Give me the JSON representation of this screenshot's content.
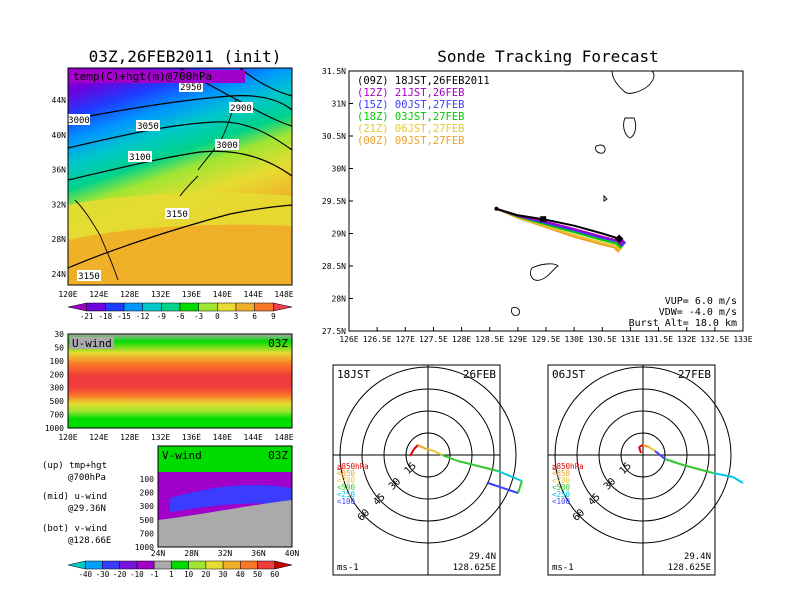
{
  "left_title": "03Z,26FEB2011 (init)",
  "right_title": "Sonde Tracking Forecast",
  "map_panel": {
    "label": "temp(C)+hgt(m)@700hPa",
    "contour_labels": [
      "2950",
      "2900",
      "3000",
      "3050",
      "3000",
      "3100",
      "3150",
      "3150"
    ],
    "lat_labels": [
      "44N",
      "40N",
      "36N",
      "32N",
      "28N",
      "24N"
    ],
    "lon_labels": [
      "120E",
      "124E",
      "128E",
      "132E",
      "136E",
      "140E",
      "144E",
      "148E"
    ]
  },
  "temp_colorbar": {
    "labels": [
      "-21",
      "-18",
      "-15",
      "-12",
      "-9",
      "-6",
      "-3",
      "0",
      "3",
      "6",
      "9"
    ],
    "colors": [
      "#a000c8",
      "#6e00dc",
      "#1e3cff",
      "#0096ff",
      "#00c8c8",
      "#00d28c",
      "#00dc00",
      "#a0e632",
      "#e6dc32",
      "#f0af28",
      "#fa7828",
      "#f03c50"
    ]
  },
  "uwind_panel": {
    "title": "U-wind",
    "time": "03Z",
    "p_labels": [
      "30",
      "50",
      "100",
      "200",
      "300",
      "500",
      "700",
      "1000"
    ],
    "lon_labels": [
      "120E",
      "124E",
      "128E",
      "132E",
      "136E",
      "140E",
      "144E",
      "148E"
    ]
  },
  "vwind_panel": {
    "title": "V-wind",
    "time": "03Z",
    "p_labels": [
      "100",
      "200",
      "300",
      "500",
      "700",
      "1000"
    ],
    "lat_labels": [
      "24N",
      "28N",
      "32N",
      "36N",
      "40N"
    ]
  },
  "legend_text": {
    "up1": "(up) tmp+hgt",
    "up2": "@700hPa",
    "mid1": "(mid) u-wind",
    "mid2": "@29.36N",
    "bot1": "(bot) v-wind",
    "bot2": "@128.66E"
  },
  "wind_colorbar": {
    "labels": [
      "-40",
      "-30",
      "-20",
      "-10",
      "-1",
      "1",
      "10",
      "20",
      "30",
      "40",
      "50",
      "60"
    ],
    "colors": [
      "#00c8c8",
      "#00a0ff",
      "#3c3cff",
      "#7814dc",
      "#a000c8",
      "#aaaaaa",
      "#00dc00",
      "#a0e632",
      "#e6dc32",
      "#f0af28",
      "#fa7828",
      "#f03c3c",
      "#c80000"
    ]
  },
  "track_panel": {
    "legend": [
      {
        "run": "(09Z)",
        "time": "18JST,26FEB2011",
        "color": "#000000"
      },
      {
        "run": "(12Z)",
        "time": "21JST,26FEB",
        "color": "#a000c8"
      },
      {
        "run": "(15Z)",
        "time": "00JST,27FEB",
        "color": "#3c3cff"
      },
      {
        "run": "(18Z)",
        "time": "03JST,27FEB",
        "color": "#00c800"
      },
      {
        "run": "(21Z)",
        "time": "06JST,27FEB",
        "color": "#e6c832"
      },
      {
        "run": "(00Z)",
        "time": "09JST,27FEB",
        "color": "#f0a028"
      }
    ],
    "lat_labels": [
      "31.5N",
      "31N",
      "30.5N",
      "30N",
      "29.5N",
      "29N",
      "28.5N",
      "28N",
      "27.5N"
    ],
    "lon_labels": [
      "126E",
      "126.5E",
      "127E",
      "127.5E",
      "128E",
      "128.5E",
      "129E",
      "129.5E",
      "130E",
      "130.5E",
      "131E",
      "131.5E",
      "132E",
      "132.5E",
      "133E"
    ],
    "info": [
      "VUP=  6.0  m/s",
      "VDW= -4.0  m/s",
      "Burst Alt= 18.0  km"
    ]
  },
  "hodo_left": {
    "tl": "18JST",
    "tr": "26FEB",
    "bl": "ms-1",
    "br1": "29.4N",
    "br2": "128.625E"
  },
  "hodo_right": {
    "tl": "06JST",
    "tr": "27FEB",
    "bl": "ms-1",
    "br1": "29.4N",
    "br2": "128.625E"
  },
  "hodo_rings": [
    "15",
    "30",
    "45",
    "60"
  ],
  "hodo_legend": [
    {
      "label": "≧850hPa",
      "color": "#e60000"
    },
    {
      "label": "<850",
      "color": "#f0a028"
    },
    {
      "label": "<700",
      "color": "#e6c832"
    },
    {
      "label": "<500",
      "color": "#32c832"
    },
    {
      "label": "<250",
      "color": "#00c8e6"
    },
    {
      "label": "<100",
      "color": "#3c3cff"
    }
  ],
  "chart_data": {
    "type": "line",
    "title": "Sonde Tracking Forecast",
    "xlim": [
      126,
      133
    ],
    "ylim": [
      27.5,
      31.5
    ],
    "series": [
      {
        "name": "(09Z) 18JST,26FEB2011",
        "x": [
          128.62,
          129.0,
          129.45,
          130.0,
          130.5,
          130.8
        ],
        "y": [
          29.38,
          29.28,
          29.22,
          29.12,
          29.0,
          28.92
        ]
      },
      {
        "name": "(12Z) 21JST,26FEB",
        "x": [
          128.62,
          129.0,
          129.45,
          130.0,
          130.5,
          130.82
        ],
        "y": [
          29.38,
          29.27,
          29.19,
          29.07,
          28.95,
          28.88
        ]
      },
      {
        "name": "(15Z) 00JST,27FEB",
        "x": [
          128.62,
          129.0,
          129.45,
          130.0,
          130.5,
          130.85
        ],
        "y": [
          29.38,
          29.27,
          29.17,
          29.05,
          28.93,
          28.86
        ]
      },
      {
        "name": "(18Z) 03JST,27FEB",
        "x": [
          128.62,
          129.0,
          129.45,
          130.0,
          130.5,
          130.82
        ],
        "y": [
          29.38,
          29.26,
          29.15,
          29.02,
          28.9,
          28.83
        ]
      },
      {
        "name": "(21Z) 06JST,27FEB",
        "x": [
          128.62,
          129.0,
          129.45,
          130.0,
          130.5,
          130.8
        ],
        "y": [
          29.38,
          29.25,
          29.13,
          28.98,
          28.86,
          28.8
        ]
      },
      {
        "name": "(00Z) 09JST,27FEB",
        "x": [
          128.62,
          129.0,
          129.45,
          130.0,
          130.5,
          130.78
        ],
        "y": [
          29.38,
          29.24,
          29.11,
          28.95,
          28.83,
          28.77
        ]
      }
    ]
  }
}
